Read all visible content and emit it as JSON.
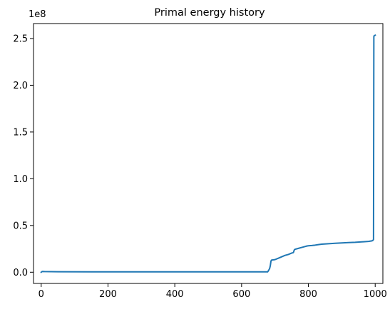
{
  "chart_data": {
    "type": "line",
    "title": "Primal energy history",
    "xlabel": "",
    "ylabel": "",
    "xlim": [
      -23,
      1023
    ],
    "ylim": [
      -12000000,
      266000000
    ],
    "x_ticks": [
      0,
      200,
      400,
      600,
      800,
      1000
    ],
    "x_tick_labels": [
      "0",
      "200",
      "400",
      "600",
      "800",
      "1000"
    ],
    "y_ticks": [
      0,
      50000000,
      100000000,
      150000000,
      200000000,
      250000000
    ],
    "y_tick_labels": [
      "0.0",
      "0.5",
      "1.0",
      "1.5",
      "2.0",
      "2.5"
    ],
    "y_offset_label": "1e8",
    "grid": false,
    "legend": false,
    "series": [
      {
        "color": "#1f77b4",
        "x": [
          0,
          3,
          10,
          50,
          150,
          300,
          500,
          650,
          678,
          681,
          684,
          686,
          688,
          690,
          700,
          710,
          720,
          730,
          740,
          750,
          755,
          758,
          760,
          770,
          780,
          790,
          795,
          800,
          810,
          820,
          830,
          840,
          860,
          880,
          900,
          920,
          940,
          960,
          980,
          990,
          993,
          995,
          996,
          997,
          1000
        ],
        "y": [
          0,
          800000,
          700000,
          500000,
          400000,
          400000,
          400000,
          400000,
          400000,
          2000000,
          4000000,
          7000000,
          12000000,
          13000000,
          13500000,
          15000000,
          16500000,
          18000000,
          19000000,
          20500000,
          21000000,
          24000000,
          24500000,
          25500000,
          26500000,
          27500000,
          28000000,
          28300000,
          28600000,
          29000000,
          29500000,
          30000000,
          30500000,
          31000000,
          31300000,
          31700000,
          32000000,
          32500000,
          33000000,
          33500000,
          34000000,
          35000000,
          252000000,
          253000000,
          253500000
        ]
      }
    ]
  }
}
